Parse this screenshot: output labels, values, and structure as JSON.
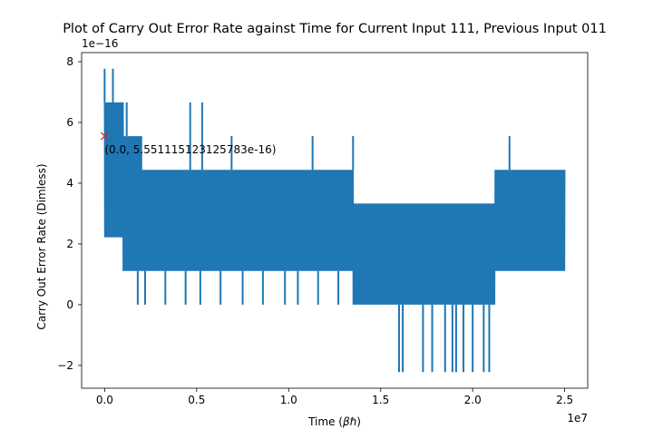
{
  "chart_data": {
    "type": "line",
    "title": "Plot of Carry Out Error Rate against Time for Current Input 111, Previous Input 011",
    "xlabel_prefix": "Time (",
    "xlabel_symbol": "βℏ",
    "xlabel_suffix": ")",
    "ylabel": "Carry Out Error Rate (Dimless)",
    "x_offset_text": "1e7",
    "y_offset_text": "1e−16",
    "xlim": [
      -1250000,
      26250000
    ],
    "ylim": [
      -2.75,
      8.3
    ],
    "x_ticks": [
      0,
      5000000,
      10000000,
      15000000,
      20000000,
      25000000
    ],
    "x_tick_labels": [
      "0.0",
      "0.5",
      "1.0",
      "1.5",
      "2.0",
      "2.5"
    ],
    "y_ticks": [
      -2,
      0,
      2,
      4,
      6,
      8
    ],
    "y_tick_labels": [
      "−2",
      "0",
      "2",
      "4",
      "6",
      "8"
    ],
    "grid": false,
    "series": [
      {
        "color": "#1f77b4",
        "x_range": [
          0,
          25000000
        ],
        "levels_e16": [
          -2.22,
          0,
          1.11,
          2.22,
          3.33,
          4.44,
          5.55,
          6.66,
          7.77
        ],
        "segments": [
          {
            "x_start": 0,
            "x_end": 1000000,
            "min": 2.22,
            "max": 6.66
          },
          {
            "x_start": 1000000,
            "x_end": 2000000,
            "min": 1.11,
            "max": 5.55
          },
          {
            "x_start": 2000000,
            "x_end": 13500000,
            "min": 1.11,
            "max": 4.44
          },
          {
            "x_start": 13500000,
            "x_end": 21200000,
            "min": 0,
            "max": 3.33
          },
          {
            "x_start": 21200000,
            "x_end": 25000000,
            "min": 1.11,
            "max": 4.44
          }
        ],
        "spikes": [
          {
            "x": 0,
            "to": 7.77
          },
          {
            "x": 450000,
            "to": 7.77
          },
          {
            "x": 900000,
            "to": 6.66
          },
          {
            "x": 1200000,
            "to": 6.66
          },
          {
            "x": 4650000,
            "to": 6.66
          },
          {
            "x": 5300000,
            "to": 6.66
          },
          {
            "x": 6900000,
            "to": 5.55
          },
          {
            "x": 11300000,
            "to": 5.55
          },
          {
            "x": 13500000,
            "to": 5.55
          },
          {
            "x": 22000000,
            "to": 5.55
          },
          {
            "x": 16000000,
            "to": -2.22
          },
          {
            "x": 16200000,
            "to": -2.22
          },
          {
            "x": 17300000,
            "to": -2.22
          },
          {
            "x": 17800000,
            "to": -2.22
          },
          {
            "x": 18500000,
            "to": -2.22
          },
          {
            "x": 18900000,
            "to": -2.22
          },
          {
            "x": 19100000,
            "to": -2.22
          },
          {
            "x": 19500000,
            "to": -2.22
          },
          {
            "x": 20000000,
            "to": -2.22
          },
          {
            "x": 20600000,
            "to": -2.22
          },
          {
            "x": 20900000,
            "to": -2.22
          },
          {
            "x": 1800000,
            "to": 0
          },
          {
            "x": 2200000,
            "to": 0
          },
          {
            "x": 3300000,
            "to": 0
          },
          {
            "x": 4400000,
            "to": 0
          },
          {
            "x": 5200000,
            "to": 0
          },
          {
            "x": 6300000,
            "to": 0
          },
          {
            "x": 7500000,
            "to": 0
          },
          {
            "x": 8600000,
            "to": 0
          },
          {
            "x": 9800000,
            "to": 0
          },
          {
            "x": 10500000,
            "to": 0
          },
          {
            "x": 11600000,
            "to": 0
          },
          {
            "x": 12700000,
            "to": 0
          }
        ]
      }
    ],
    "annotation": {
      "x": 0,
      "y": 5.551115123125783,
      "marker": "x",
      "color": "#d62728",
      "label": "(0.0, 5.551115123125783e-16)"
    }
  }
}
